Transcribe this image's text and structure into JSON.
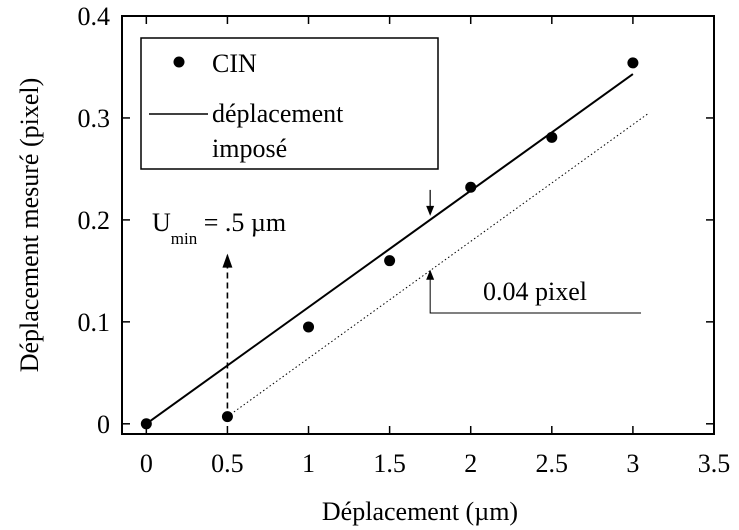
{
  "chart_data": {
    "type": "scatter",
    "xlabel": "Déplacement (µm)",
    "ylabel": "Déplacement mesuré (pixel)",
    "xlim": [
      -0.15,
      3.5
    ],
    "ylim": [
      -0.01,
      0.4
    ],
    "xticks": [
      0,
      0.5,
      1,
      1.5,
      2,
      2.5,
      3,
      3.5
    ],
    "xtick_labels": [
      "0",
      "0.5",
      "1",
      "1.5",
      "2",
      "2.5",
      "3",
      "3.5"
    ],
    "yticks": [
      0,
      0.1,
      0.2,
      0.3,
      0.4
    ],
    "ytick_labels": [
      "0",
      "0.1",
      "0.2",
      "0.3",
      "0.4"
    ],
    "grid": false,
    "legend_position": "top-left",
    "series": [
      {
        "name": "CIN",
        "kind": "points",
        "x": [
          0,
          0.5,
          1,
          1.5,
          2,
          2.5,
          3
        ],
        "y": [
          0.0,
          0.007,
          0.095,
          0.16,
          0.232,
          0.281,
          0.354
        ]
      },
      {
        "name": "déplacement imposé",
        "kind": "line",
        "x": [
          0,
          3
        ],
        "y": [
          0.0,
          0.343
        ]
      },
      {
        "kind": "dotted-line",
        "x": [
          0.5,
          3.1
        ],
        "y": [
          0.007,
          0.305
        ]
      }
    ],
    "legend": {
      "points_label": "CIN",
      "line_label_1": "déplacement",
      "line_label_2": "imposé"
    },
    "annotations": {
      "umin_main": "U",
      "umin_sub": "min",
      "umin_value": " = .5 µm",
      "offset_label": "0.04 pixel",
      "umin_arrow_x": 0.5,
      "umin_arrow_y_range": [
        0.015,
        0.165
      ],
      "offset_x": 1.75,
      "offset_top_y": 0.2,
      "offset_bottom_y": 0.155
    }
  }
}
